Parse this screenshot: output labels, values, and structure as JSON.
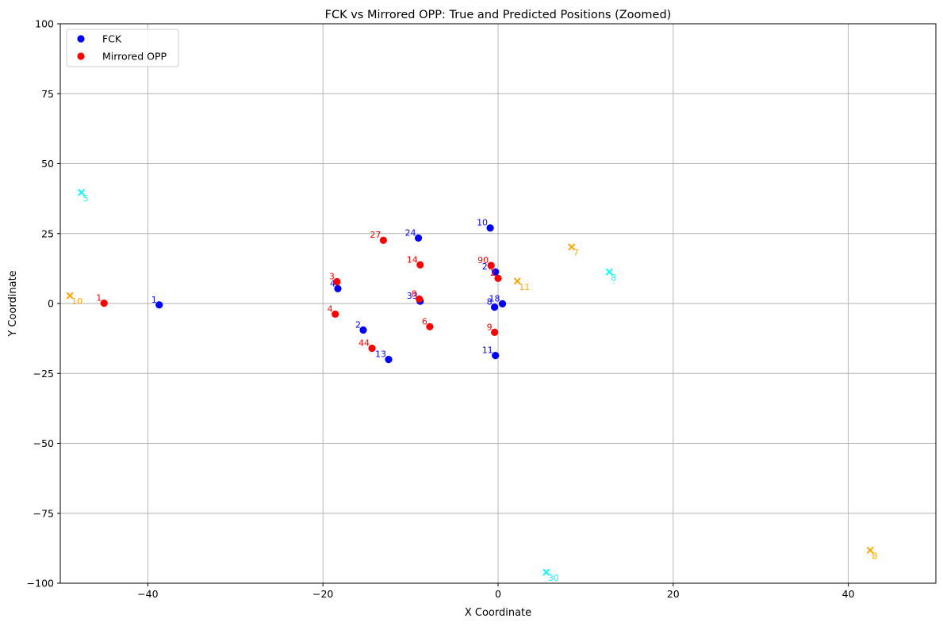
{
  "chart_data": {
    "type": "scatter",
    "title": "FCK vs Mirrored OPP: True and Predicted Positions (Zoomed)",
    "xlabel": "X Coordinate",
    "ylabel": "Y Coordinate",
    "xlim": [
      -50,
      50
    ],
    "ylim": [
      -100,
      100
    ],
    "xticks": [
      -40,
      -20,
      0,
      20,
      40
    ],
    "yticks": [
      -100,
      -75,
      -50,
      -25,
      0,
      25,
      50,
      75,
      100
    ],
    "xtick_labels": [
      "−40",
      "−20",
      "0",
      "20",
      "40"
    ],
    "ytick_labels": [
      "−100",
      "−75",
      "−50",
      "−25",
      "0",
      "25",
      "50",
      "75",
      "100"
    ],
    "grid": true,
    "legend_position": "top-left",
    "series": [
      {
        "name": "FCK",
        "marker": "circle",
        "color": "#0000ff",
        "points": [
          {
            "x": -38.7,
            "y": -0.5,
            "label": "1"
          },
          {
            "x": -18.3,
            "y": 5.3,
            "label": "4"
          },
          {
            "x": -15.4,
            "y": -9.5,
            "label": "2"
          },
          {
            "x": -12.5,
            "y": -20.0,
            "label": "13"
          },
          {
            "x": -9.1,
            "y": 23.4,
            "label": "24"
          },
          {
            "x": -8.9,
            "y": 0.8,
            "label": "33"
          },
          {
            "x": -0.9,
            "y": 27.0,
            "label": "10"
          },
          {
            "x": -0.3,
            "y": 11.3,
            "label": "27"
          },
          {
            "x": -0.4,
            "y": -1.3,
            "label": "8"
          },
          {
            "x": 0.5,
            "y": -0.1,
            "label": "18"
          },
          {
            "x": -0.3,
            "y": -18.6,
            "label": "11"
          }
        ]
      },
      {
        "name": "Mirrored OPP",
        "marker": "circle",
        "color": "#ff0000",
        "points": [
          {
            "x": -45.0,
            "y": 0.1,
            "label": "1"
          },
          {
            "x": -18.4,
            "y": 7.8,
            "label": "3"
          },
          {
            "x": -18.6,
            "y": -3.8,
            "label": "4"
          },
          {
            "x": -14.4,
            "y": -16.0,
            "label": "44"
          },
          {
            "x": -13.1,
            "y": 22.6,
            "label": "27"
          },
          {
            "x": -8.9,
            "y": 13.8,
            "label": "14"
          },
          {
            "x": -9.0,
            "y": 1.6,
            "label": "8"
          },
          {
            "x": -7.8,
            "y": -8.3,
            "label": "6"
          },
          {
            "x": -0.8,
            "y": 13.6,
            "label": "90"
          },
          {
            "x": 0.0,
            "y": 9.0,
            "label": "2"
          },
          {
            "x": -0.4,
            "y": -10.3,
            "label": "9"
          }
        ]
      },
      {
        "name": "",
        "marker": "x",
        "color": "#ffa500",
        "points": [
          {
            "x": -48.9,
            "y": 2.8,
            "label": "10"
          },
          {
            "x": 8.4,
            "y": 20.2,
            "label": "7"
          },
          {
            "x": 2.2,
            "y": 8.0,
            "label": "11"
          },
          {
            "x": 42.5,
            "y": -88.2,
            "label": "8"
          }
        ]
      },
      {
        "name": "",
        "marker": "x",
        "color": "#00ffff",
        "points": [
          {
            "x": -47.6,
            "y": 39.7,
            "label": "5"
          },
          {
            "x": 12.7,
            "y": 11.3,
            "label": "8"
          },
          {
            "x": 5.5,
            "y": -96.1,
            "label": "30"
          }
        ]
      }
    ]
  }
}
